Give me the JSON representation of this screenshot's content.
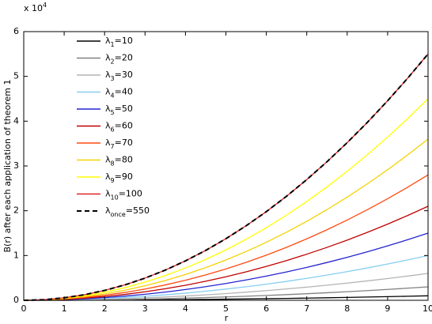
{
  "chart_data": {
    "type": "line",
    "xlabel": "r",
    "ylabel": "B(r) after each application of theorem 1",
    "y_multiplier": {
      "base": "x 10",
      "exponent": "4"
    },
    "x": [
      0,
      0.5,
      1,
      1.5,
      2,
      2.5,
      3,
      3.5,
      4,
      4.5,
      5,
      5.5,
      6,
      6.5,
      7,
      7.5,
      8,
      8.5,
      9,
      9.5,
      10
    ],
    "xlim": [
      0,
      10
    ],
    "xticks": [
      0,
      1,
      2,
      3,
      4,
      5,
      6,
      7,
      8,
      9,
      10
    ],
    "ylim": [
      0,
      60000
    ],
    "yticks": [
      {
        "value": 0,
        "label": "0"
      },
      {
        "value": 10000,
        "label": "1"
      },
      {
        "value": 20000,
        "label": "2"
      },
      {
        "value": 30000,
        "label": "3"
      },
      {
        "value": 40000,
        "label": "4"
      },
      {
        "value": 50000,
        "label": "5"
      },
      {
        "value": 60000,
        "label": "6"
      }
    ],
    "legend": "upper left",
    "series": [
      {
        "name": "λ1=10",
        "color": "#000000",
        "values": [
          0,
          2.5,
          10,
          22.5,
          40,
          62.5,
          90,
          122.5,
          160,
          202.5,
          250,
          302.5,
          360,
          422.5,
          490,
          562.5,
          640,
          722.5,
          810,
          902.5,
          1000
        ]
      },
      {
        "name": "λ2=20",
        "color": "#808080",
        "values": [
          0,
          7.5,
          30,
          67.5,
          120,
          187.5,
          270,
          367.5,
          480,
          607.5,
          750,
          907.5,
          1080,
          1267.5,
          1470,
          1687.5,
          1920,
          2167.5,
          2430,
          2707.5,
          3000
        ]
      },
      {
        "name": "λ3=30",
        "color": "#b4b4b4",
        "values": [
          0,
          15,
          60,
          135,
          240,
          375,
          540,
          735,
          960,
          1215,
          1500,
          1815,
          2160,
          2535,
          2940,
          3375,
          3840,
          4335,
          4860,
          5415,
          6000
        ]
      },
      {
        "name": "λ4=40",
        "color": "#87cef0",
        "values": [
          0,
          25,
          100,
          225,
          400,
          625,
          900,
          1225,
          1600,
          2025,
          2500,
          3025,
          3600,
          4225,
          4900,
          5625,
          6400,
          7225,
          8100,
          9025,
          10000
        ]
      },
      {
        "name": "λ5=50",
        "color": "#2424d0",
        "values": [
          0,
          37.5,
          150,
          337.5,
          600,
          937.5,
          1350,
          1837.5,
          2400,
          3037.5,
          3750,
          4537.5,
          5400,
          6337.5,
          7350,
          8437.5,
          9600,
          10837.5,
          12150,
          13537.5,
          15000
        ]
      },
      {
        "name": "λ6=60",
        "color": "#c00000",
        "values": [
          0,
          52.5,
          210,
          472.5,
          840,
          1312.5,
          1890,
          2572.5,
          3360,
          4252.5,
          5250,
          6352.5,
          7560,
          8872.5,
          10290,
          11812.5,
          13440,
          15172.5,
          17010,
          18952.5,
          21000
        ]
      },
      {
        "name": "λ7=70",
        "color": "#ff4a10",
        "values": [
          0,
          70,
          280,
          630,
          1120,
          1750,
          2520,
          3430,
          4480,
          5670,
          7000,
          8470,
          10080,
          11830,
          13720,
          15750,
          17920,
          20230,
          22680,
          25270,
          28000
        ]
      },
      {
        "name": "λ8=80",
        "color": "#f5d200",
        "values": [
          0,
          90,
          360,
          810,
          1440,
          2250,
          3240,
          4410,
          5760,
          7290,
          9000,
          10890,
          12960,
          15210,
          17640,
          20250,
          23040,
          26010,
          29160,
          32490,
          36000
        ]
      },
      {
        "name": "λ9=90",
        "color": "#ffff00",
        "values": [
          0,
          112.5,
          450,
          1012.5,
          1800,
          2812.5,
          4050,
          5512.5,
          7200,
          9112.5,
          11250,
          13612.5,
          16200,
          19012.5,
          22050,
          25312.5,
          28800,
          32512.5,
          36450,
          40612.5,
          45000
        ]
      },
      {
        "name": "λ10=100",
        "color": "#e02020",
        "values": [
          0,
          137.5,
          550,
          1237.5,
          2200,
          3437.5,
          4950,
          6737.5,
          8800,
          11137.5,
          13750,
          16637.5,
          19800,
          23237.5,
          26950,
          30937.5,
          35200,
          39737.5,
          44550,
          49637.5,
          55000
        ]
      },
      {
        "name": "λonce=550",
        "color": "#000000",
        "linestyle": "dashed",
        "values": [
          0,
          137.5,
          550,
          1237.5,
          2200,
          3437.5,
          4950,
          6737.5,
          8800,
          11137.5,
          13750,
          16637.5,
          19800,
          23237.5,
          26950,
          30937.5,
          35200,
          39737.5,
          44550,
          49637.5,
          55000
        ]
      }
    ]
  }
}
